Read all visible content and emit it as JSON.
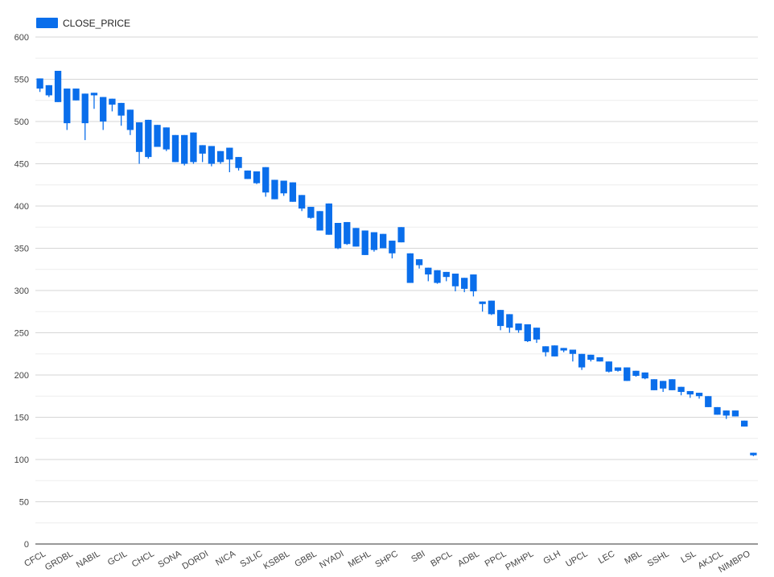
{
  "chart_data": {
    "type": "candlestick",
    "legend": {
      "label": "CLOSE_PRICE",
      "placement": "top-left",
      "color": "#0a6eeb"
    },
    "ylim": [
      0,
      600
    ],
    "y_ticks": [
      0,
      50,
      100,
      150,
      200,
      250,
      300,
      350,
      400,
      450,
      500,
      550,
      600
    ],
    "grid": true,
    "x_tick_labels": [
      "CFCL",
      "GRDBL",
      "NABIL",
      "GCIL",
      "CHCL",
      "SONA",
      "DORDI",
      "NICA",
      "SJLIC",
      "KSBBL",
      "GBBL",
      "NYADI",
      "MEHL",
      "SHPC",
      "SBI",
      "BPCL",
      "ADBL",
      "PPCL",
      "PMHPL",
      "GLH",
      "UPCL",
      "LEC",
      "MBL",
      "SSHL",
      "LSL",
      "AKJCL",
      "NIMBPO"
    ],
    "series": [
      {
        "values": [
          [
            539,
            551,
            535,
            551
          ],
          [
            531,
            543,
            529,
            543
          ],
          [
            523,
            560,
            523,
            560
          ],
          [
            498,
            539,
            490,
            539
          ],
          [
            525,
            539,
            525,
            539
          ],
          [
            498,
            533,
            478,
            533
          ],
          [
            531,
            534,
            515,
            534
          ],
          [
            500,
            529,
            490,
            529
          ],
          [
            520,
            527,
            512,
            527
          ],
          [
            507,
            522,
            495,
            522
          ],
          [
            490,
            514,
            484,
            514
          ],
          [
            464,
            499,
            450,
            499
          ],
          [
            458,
            502,
            456,
            502
          ],
          [
            470,
            496,
            470,
            496
          ],
          [
            467,
            493,
            465,
            493
          ],
          [
            452,
            484,
            452,
            484
          ],
          [
            450,
            484,
            448,
            484
          ],
          [
            452,
            487,
            450,
            487
          ],
          [
            462,
            472,
            452,
            472
          ],
          [
            450,
            471,
            447,
            471
          ],
          [
            452,
            465,
            450,
            465
          ],
          [
            455,
            469,
            440,
            469
          ],
          [
            445,
            458,
            442,
            458
          ],
          [
            432,
            442,
            432,
            442
          ],
          [
            427,
            441,
            426,
            441
          ],
          [
            416,
            446,
            411,
            446
          ],
          [
            408,
            431,
            408,
            431
          ],
          [
            415,
            430,
            412,
            430
          ],
          [
            405,
            428,
            405,
            428
          ],
          [
            397,
            413,
            394,
            413
          ],
          [
            386,
            399,
            385,
            399
          ],
          [
            371,
            394,
            371,
            394
          ],
          [
            366,
            403,
            366,
            403
          ],
          [
            350,
            380,
            349,
            380
          ],
          [
            355,
            381,
            354,
            381
          ],
          [
            352,
            374,
            352,
            374
          ],
          [
            342,
            371,
            342,
            371
          ],
          [
            348,
            369,
            346,
            369
          ],
          [
            350,
            367,
            350,
            367
          ],
          [
            344,
            359,
            338,
            359
          ],
          [
            357,
            375,
            357,
            375
          ],
          [
            309,
            344,
            309,
            344
          ],
          [
            330,
            337,
            326,
            337
          ],
          [
            319,
            327,
            311,
            327
          ],
          [
            309,
            324,
            308,
            324
          ],
          [
            316,
            322,
            311,
            322
          ],
          [
            305,
            320,
            299,
            320
          ],
          [
            302,
            315,
            298,
            315
          ],
          [
            299,
            319,
            293,
            319
          ],
          [
            284,
            287,
            275,
            287
          ],
          [
            272,
            288,
            271,
            288
          ],
          [
            258,
            277,
            253,
            277
          ],
          [
            256,
            272,
            250,
            272
          ],
          [
            253,
            261,
            250,
            261
          ],
          [
            240,
            260,
            239,
            260
          ],
          [
            242,
            256,
            238,
            256
          ],
          [
            227,
            234,
            222,
            234
          ],
          [
            222,
            235,
            222,
            235
          ],
          [
            229,
            232,
            227,
            232
          ],
          [
            225,
            230,
            216,
            230
          ],
          [
            209,
            225,
            206,
            225
          ],
          [
            218,
            224,
            216,
            224
          ],
          [
            216,
            221,
            216,
            221
          ],
          [
            204,
            216,
            203,
            216
          ],
          [
            205,
            209,
            204,
            209
          ],
          [
            193,
            209,
            193,
            209
          ],
          [
            199,
            205,
            198,
            205
          ],
          [
            196,
            203,
            195,
            203
          ],
          [
            182,
            195,
            182,
            195
          ],
          [
            184,
            193,
            180,
            193
          ],
          [
            182,
            195,
            182,
            195
          ],
          [
            180,
            186,
            176,
            186
          ],
          [
            177,
            181,
            173,
            181
          ],
          [
            175,
            179,
            172,
            179
          ],
          [
            162,
            175,
            162,
            175
          ],
          [
            153,
            162,
            153,
            162
          ],
          [
            152,
            158,
            148,
            158
          ],
          [
            151,
            158,
            151,
            158
          ],
          [
            139,
            146,
            139,
            146
          ],
          [
            105,
            108,
            104,
            108
          ]
        ]
      }
    ]
  }
}
